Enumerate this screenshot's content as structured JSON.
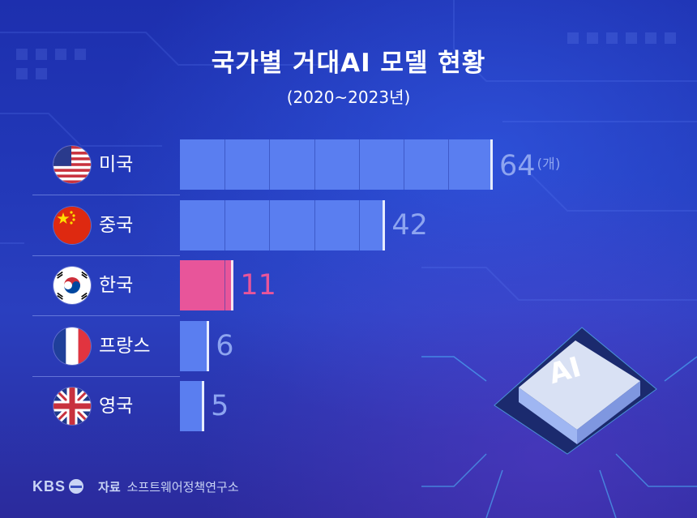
{
  "title": "국가별 거대AI 모델 현황",
  "subtitle": "(2020~2023년)",
  "unit": "(개)",
  "chip_text": "AI",
  "footer": {
    "brand": "KBS",
    "source_label": "자료",
    "source_name": "소프트웨어정책연구소"
  },
  "colors": {
    "bar": "#5a7ef0",
    "highlight": "#e8559a",
    "value_text": "#8da4f0",
    "background": "#2238b8"
  },
  "chart_data": {
    "type": "bar",
    "orientation": "horizontal",
    "title": "국가별 거대AI 모델 현황",
    "subtitle": "(2020~2023년)",
    "categories": [
      "미국",
      "중국",
      "한국",
      "프랑스",
      "영국"
    ],
    "values": [
      64,
      42,
      11,
      6,
      5
    ],
    "value_labels": [
      "64",
      "42",
      "11",
      "6",
      "5"
    ],
    "flags": [
      "us-flag-icon",
      "china-flag-icon",
      "korea-flag-icon",
      "france-flag-icon",
      "uk-flag-icon"
    ],
    "highlight_index": 2,
    "unit": "(개)",
    "xlim": [
      0,
      64
    ],
    "grid": false,
    "legend": "none"
  }
}
